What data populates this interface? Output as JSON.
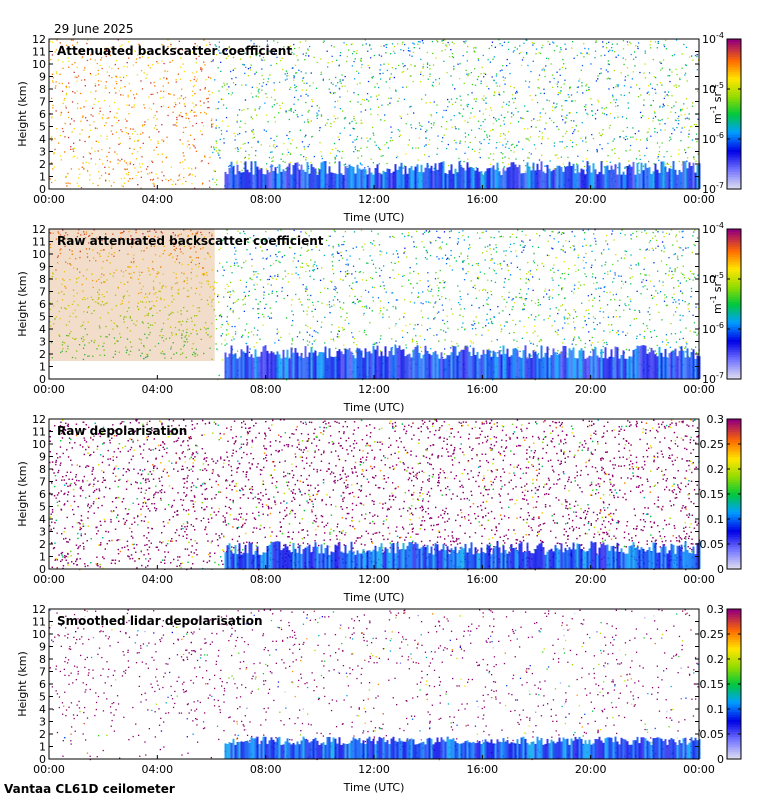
{
  "header": {
    "date": "29 June 2025"
  },
  "footer": {
    "instrument": "Vantaa CL61D ceilometer"
  },
  "colors": {
    "frame": "#000000",
    "background": "#ffffff"
  },
  "chart_data": [
    {
      "type": "heatmap",
      "title": "Attenuated backscatter coefficient",
      "xlabel": "Time (UTC)",
      "ylabel": "Height (km)",
      "xticks": [
        "00:00",
        "04:00",
        "08:00",
        "12:00",
        "16:00",
        "20:00",
        "00:00"
      ],
      "yticks": [
        "0",
        "1",
        "2",
        "3",
        "4",
        "5",
        "6",
        "7",
        "8",
        "9",
        "10",
        "11",
        "12"
      ],
      "ylim": [
        0,
        12
      ],
      "colorbar": {
        "scale": "log",
        "ticks": [
          "10",
          "10",
          "10",
          "10"
        ],
        "exponents": [
          "-7",
          "-6",
          "-5",
          "-4"
        ],
        "unit_base": [
          "m",
          "sr"
        ],
        "unit_exp": [
          "-1",
          "-1"
        ]
      }
    },
    {
      "type": "heatmap",
      "title": "Raw attenuated backscatter coefficient",
      "xlabel": "Time (UTC)",
      "ylabel": "Height (km)",
      "xticks": [
        "00:00",
        "04:00",
        "08:00",
        "12:00",
        "16:00",
        "20:00",
        "00:00"
      ],
      "yticks": [
        "0",
        "1",
        "2",
        "3",
        "4",
        "5",
        "6",
        "7",
        "8",
        "9",
        "10",
        "11",
        "12"
      ],
      "ylim": [
        0,
        12
      ],
      "colorbar": {
        "scale": "log",
        "ticks": [
          "10",
          "10",
          "10",
          "10"
        ],
        "exponents": [
          "-7",
          "-6",
          "-5",
          "-4"
        ],
        "unit_base": [
          "m",
          "sr"
        ],
        "unit_exp": [
          "-1",
          "-1"
        ]
      }
    },
    {
      "type": "heatmap",
      "title": "Raw depolarisation",
      "xlabel": "Time (UTC)",
      "ylabel": "Height (km)",
      "xticks": [
        "00:00",
        "04:00",
        "08:00",
        "12:00",
        "16:00",
        "20:00",
        "00:00"
      ],
      "yticks": [
        "0",
        "1",
        "2",
        "3",
        "4",
        "5",
        "6",
        "7",
        "8",
        "9",
        "10",
        "11",
        "12"
      ],
      "ylim": [
        0,
        12
      ],
      "colorbar": {
        "scale": "linear",
        "range": [
          0,
          0.3
        ],
        "ticks": [
          "0",
          "0.05",
          "0.1",
          "0.15",
          "0.2",
          "0.25",
          "0.3"
        ]
      }
    },
    {
      "type": "heatmap",
      "title": "Smoothed lidar depolarisation",
      "xlabel": "Time (UTC)",
      "ylabel": "Height (km)",
      "xticks": [
        "00:00",
        "04:00",
        "08:00",
        "12:00",
        "16:00",
        "20:00",
        "00:00"
      ],
      "yticks": [
        "0",
        "1",
        "2",
        "3",
        "4",
        "5",
        "6",
        "7",
        "8",
        "9",
        "10",
        "11",
        "12"
      ],
      "ylim": [
        0,
        12
      ],
      "colorbar": {
        "scale": "linear",
        "range": [
          0,
          0.3
        ],
        "ticks": [
          "0",
          "0.05",
          "0.1",
          "0.15",
          "0.2",
          "0.25",
          "0.3"
        ]
      }
    }
  ]
}
